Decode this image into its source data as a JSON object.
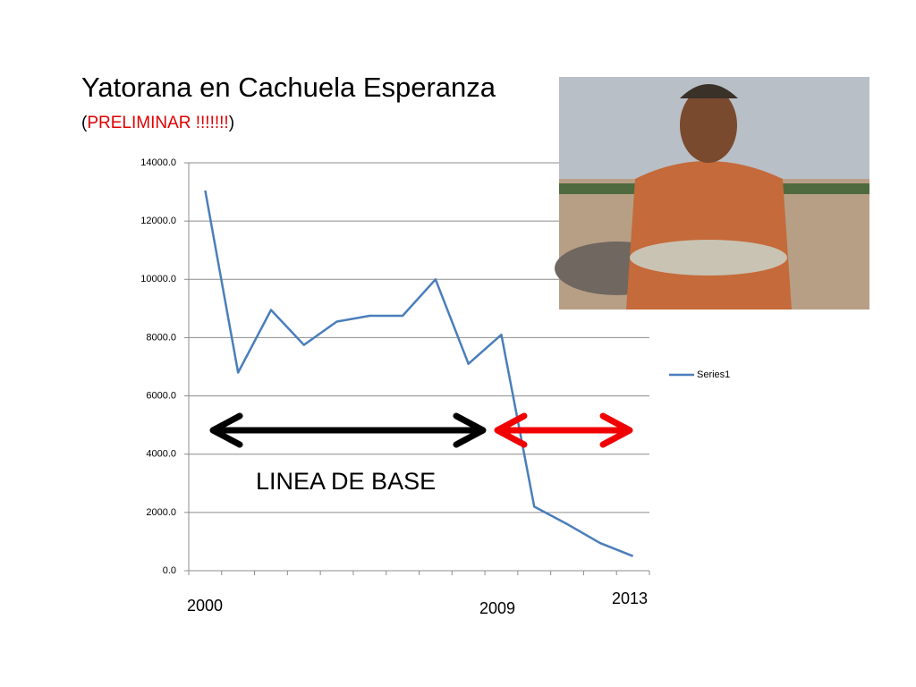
{
  "chart_data": {
    "type": "line",
    "title": "Yatorana en Cachuela Esperanza",
    "subtitle": [
      "(",
      "PRELIMINAR !!!!!!!",
      ")"
    ],
    "series": [
      {
        "name": "Series1",
        "color": "#4a7ebb",
        "values": [
          13050,
          6800,
          8950,
          7750,
          8550,
          8750,
          8750,
          10000,
          7100,
          8100,
          2200,
          1600,
          950,
          500
        ]
      }
    ],
    "ylim": [
      0,
      14000
    ],
    "yticks": [
      {
        "value": 0,
        "label": "0.0"
      },
      {
        "value": 2000,
        "label": "2000.0"
      },
      {
        "value": 4000,
        "label": "4000.0"
      },
      {
        "value": 6000,
        "label": "6000.0"
      },
      {
        "value": 8000,
        "label": "8000.0"
      },
      {
        "value": 10000,
        "label": "10000.0"
      },
      {
        "value": 12000,
        "label": "12000.0"
      },
      {
        "value": 14000,
        "label": "14000.0"
      }
    ],
    "grid": true,
    "legend": "right",
    "annotations": [
      "2000",
      "2009",
      "2013",
      "LINEA DE BASE"
    ]
  }
}
